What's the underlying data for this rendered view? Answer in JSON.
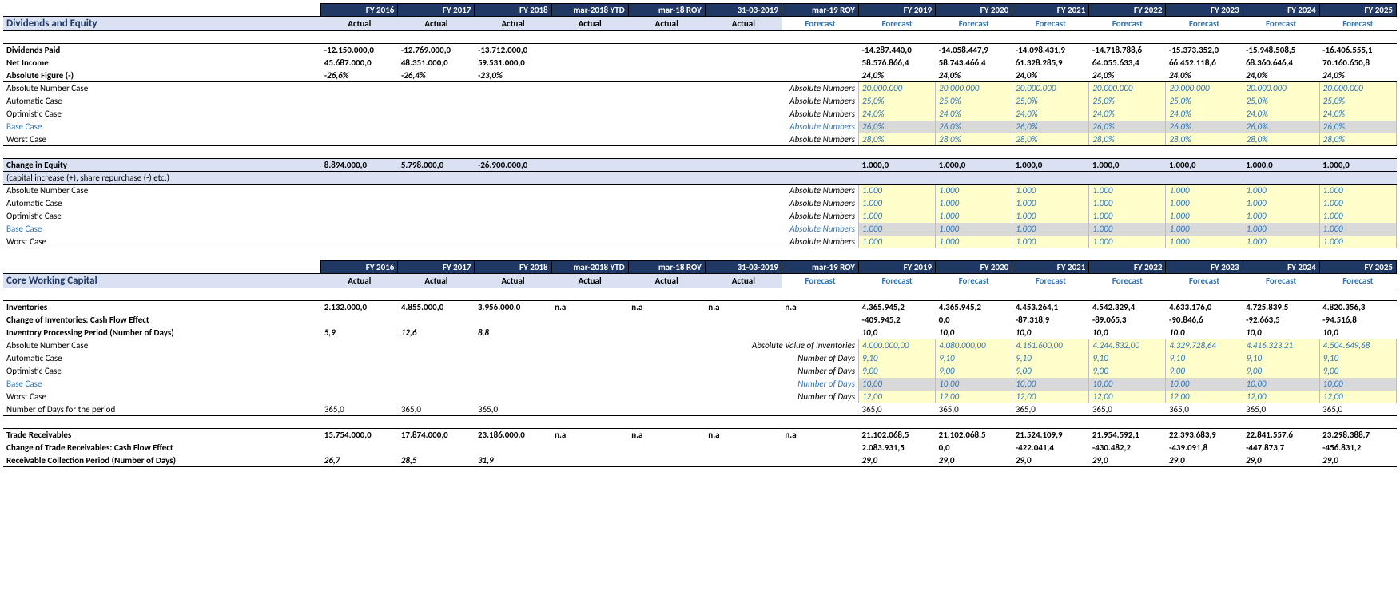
{
  "periods": [
    "FY 2016",
    "FY 2017",
    "FY 2018",
    "mar-2018 YTD",
    "mar-18 ROY",
    "31-03-2019",
    "mar-19 ROY",
    "FY 2019",
    "FY 2020",
    "FY 2021",
    "FY 2022",
    "FY 2023",
    "FY 2024",
    "FY 2025"
  ],
  "types": [
    "Actual",
    "Actual",
    "Actual",
    "Actual",
    "Actual",
    "Actual",
    "Forecast",
    "Forecast",
    "Forecast",
    "Forecast",
    "Forecast",
    "Forecast",
    "Forecast",
    "Forecast"
  ],
  "section1": {
    "title": "Dividends and Equity",
    "rows": {
      "dividends_paid": {
        "label": "Dividends Paid",
        "vals": [
          "-12.150.000,0",
          "-12.769.000,0",
          "-13.712.000,0",
          "",
          "",
          "",
          "",
          "-14.287.440,0",
          "-14.058.447,9",
          "-14.098.431,9",
          "-14.718.788,6",
          "-15.373.352,0",
          "-15.948.508,5",
          "-16.406.555,1"
        ]
      },
      "net_income": {
        "label": "Net Income",
        "vals": [
          "45.687.000,0",
          "48.351.000,0",
          "59.531.000,0",
          "",
          "",
          "",
          "",
          "58.576.866,4",
          "58.743.466,4",
          "61.328.285,9",
          "64.055.633,4",
          "66.452.118,6",
          "68.360.646,4",
          "70.160.650,8"
        ]
      },
      "abs_figure": {
        "label": "Absolute Figure (-)",
        "vals": [
          "-26,6%",
          "-26,4%",
          "-23,0%",
          "",
          "",
          "",
          "",
          "24,0%",
          "24,0%",
          "24,0%",
          "24,0%",
          "24,0%",
          "24,0%",
          "24,0%"
        ]
      },
      "cases": [
        {
          "label": "Absolute Number Case",
          "mid": "Absolute Numbers",
          "vals": [
            "20.000.000",
            "20.000.000",
            "20.000.000",
            "20.000.000",
            "20.000.000",
            "20.000.000",
            "20.000.000"
          ],
          "style": "yellow"
        },
        {
          "label": "Automatic Case",
          "mid": "Absolute Numbers",
          "vals": [
            "25,0%",
            "25,0%",
            "25,0%",
            "25,0%",
            "25,0%",
            "25,0%",
            "25,0%"
          ],
          "style": "yellow"
        },
        {
          "label": "Optimistic Case",
          "mid": "Absolute Numbers",
          "vals": [
            "24,0%",
            "24,0%",
            "24,0%",
            "24,0%",
            "24,0%",
            "24,0%",
            "24,0%"
          ],
          "style": "yellow"
        },
        {
          "label": "Base Case",
          "mid": "Absolute Numbers",
          "vals": [
            "26,0%",
            "26,0%",
            "26,0%",
            "26,0%",
            "26,0%",
            "26,0%",
            "26,0%"
          ],
          "style": "grey",
          "base": true
        },
        {
          "label": "Worst Case",
          "mid": "Absolute Numbers",
          "vals": [
            "28,0%",
            "28,0%",
            "28,0%",
            "28,0%",
            "28,0%",
            "28,0%",
            "28,0%"
          ],
          "style": "yellow"
        }
      ],
      "change_equity": {
        "label": "Change in Equity",
        "sublabel": "(capital increase (+), share repurchase (-) etc.)",
        "vals": [
          "8.894.000,0",
          "5.798.000,0",
          "-26.900.000,0",
          "",
          "",
          "",
          "",
          "1.000,0",
          "1.000,0",
          "1.000,0",
          "1.000,0",
          "1.000,0",
          "1.000,0",
          "1.000,0"
        ]
      },
      "cases2": [
        {
          "label": "Absolute Number Case",
          "mid": "Absolute Numbers",
          "vals": [
            "1.000",
            "1.000",
            "1.000",
            "1.000",
            "1.000",
            "1.000",
            "1.000"
          ],
          "style": "yellow"
        },
        {
          "label": "Automatic Case",
          "mid": "Absolute Numbers",
          "vals": [
            "1.000",
            "1.000",
            "1.000",
            "1.000",
            "1.000",
            "1.000",
            "1.000"
          ],
          "style": "yellow"
        },
        {
          "label": "Optimistic Case",
          "mid": "Absolute Numbers",
          "vals": [
            "1.000",
            "1.000",
            "1.000",
            "1.000",
            "1.000",
            "1.000",
            "1.000"
          ],
          "style": "yellow"
        },
        {
          "label": "Base Case",
          "mid": "Absolute Numbers",
          "vals": [
            "1.000",
            "1.000",
            "1.000",
            "1.000",
            "1.000",
            "1.000",
            "1.000"
          ],
          "style": "grey",
          "base": true
        },
        {
          "label": "Worst Case",
          "mid": "Absolute Numbers",
          "vals": [
            "1.000",
            "1.000",
            "1.000",
            "1.000",
            "1.000",
            "1.000",
            "1.000"
          ],
          "style": "yellow"
        }
      ]
    }
  },
  "section2": {
    "title": "Core Working Capital",
    "rows": {
      "inventories": {
        "label": "Inventories",
        "vals": [
          "2.132.000,0",
          "4.855.000,0",
          "3.956.000,0",
          "n.a",
          "n.a",
          "n.a",
          "n.a",
          "4.365.945,2",
          "4.365.945,2",
          "4.453.264,1",
          "4.542.329,4",
          "4.633.176,0",
          "4.725.839,5",
          "4.820.356,3"
        ]
      },
      "change_inv": {
        "label": "Change of Inventories: Cash Flow Effect",
        "vals": [
          "",
          "",
          "",
          "",
          "",
          "",
          "",
          "-409.945,2",
          "0,0",
          "-87.318,9",
          "-89.065,3",
          "-90.846,6",
          "-92.663,5",
          "-94.516,8"
        ]
      },
      "inv_period": {
        "label": "Inventory Processing Period (Number of Days)",
        "vals": [
          "5,9",
          "12,6",
          "8,8",
          "",
          "",
          "",
          "",
          "10,0",
          "10,0",
          "10,0",
          "10,0",
          "10,0",
          "10,0",
          "10,0"
        ]
      },
      "cases": [
        {
          "label": "Absolute Number Case",
          "mid": "Absolute Value of Inventories",
          "vals": [
            "4.000.000,00",
            "4.080.000,00",
            "4.161.600,00",
            "4.244.832,00",
            "4.329.728,64",
            "4.416.323,21",
            "4.504.649,68"
          ],
          "style": "yellow"
        },
        {
          "label": "Automatic Case",
          "mid": "Number of Days",
          "vals": [
            "9,10",
            "9,10",
            "9,10",
            "9,10",
            "9,10",
            "9,10",
            "9,10"
          ],
          "style": "yellow"
        },
        {
          "label": "Optimistic Case",
          "mid": "Number of Days",
          "vals": [
            "9,00",
            "9,00",
            "9,00",
            "9,00",
            "9,00",
            "9,00",
            "9,00"
          ],
          "style": "yellow"
        },
        {
          "label": "Base Case",
          "mid": "Number of Days",
          "vals": [
            "10,00",
            "10,00",
            "10,00",
            "10,00",
            "10,00",
            "10,00",
            "10,00"
          ],
          "style": "grey",
          "base": true
        },
        {
          "label": "Worst Case",
          "mid": "Number of Days",
          "vals": [
            "12,00",
            "12,00",
            "12,00",
            "12,00",
            "12,00",
            "12,00",
            "12,00"
          ],
          "style": "yellow"
        }
      ],
      "num_days": {
        "label": "Number of Days for the period",
        "vals": [
          "365,0",
          "365,0",
          "365,0",
          "",
          "",
          "",
          "",
          "365,0",
          "365,0",
          "365,0",
          "365,0",
          "365,0",
          "365,0",
          "365,0"
        ]
      },
      "trade_rec": {
        "label": "Trade Receivables",
        "vals": [
          "15.754.000,0",
          "17.874.000,0",
          "23.186.000,0",
          "n.a",
          "n.a",
          "n.a",
          "n.a",
          "21.102.068,5",
          "21.102.068,5",
          "21.524.109,9",
          "21.954.592,1",
          "22.393.683,9",
          "22.841.557,6",
          "23.298.388,7"
        ]
      },
      "change_tr": {
        "label": "Change of Trade Receivables: Cash Flow Effect",
        "vals": [
          "",
          "",
          "",
          "",
          "",
          "",
          "",
          "2.083.931,5",
          "0,0",
          "-422.041,4",
          "-430.482,2",
          "-439.091,8",
          "-447.873,7",
          "-456.831,2"
        ]
      },
      "rec_period": {
        "label": "Receivable Collection Period (Number of Days)",
        "vals": [
          "26,7",
          "28,5",
          "31,9",
          "",
          "",
          "",
          "",
          "29,0",
          "29,0",
          "29,0",
          "29,0",
          "29,0",
          "29,0",
          "29,0"
        ]
      }
    }
  }
}
